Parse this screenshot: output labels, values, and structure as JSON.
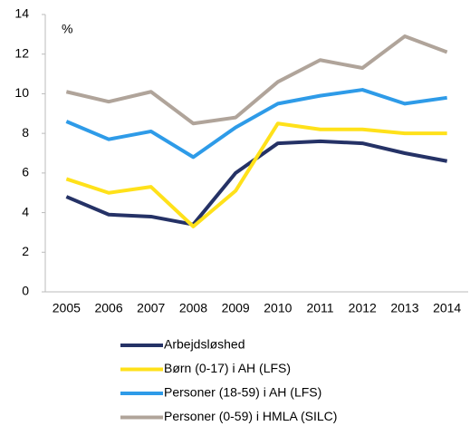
{
  "chart_data": {
    "type": "line",
    "y_label": "%",
    "categories": [
      "2005",
      "2006",
      "2007",
      "2008",
      "2009",
      "2010",
      "2011",
      "2012",
      "2013",
      "2014"
    ],
    "series": [
      {
        "name": "Arbejdsløshed",
        "color": "#253266",
        "values": [
          4.8,
          3.9,
          3.8,
          3.4,
          6.0,
          7.5,
          7.6,
          7.5,
          7.0,
          6.6
        ]
      },
      {
        "name": "Børn (0-17) i AH (LFS)",
        "color": "#ffe11a",
        "values": [
          5.7,
          5.0,
          5.3,
          3.3,
          5.1,
          8.5,
          8.2,
          8.2,
          8.0,
          8.0
        ]
      },
      {
        "name": "Personer (18-59) i AH (LFS)",
        "color": "#2e9be8",
        "values": [
          8.6,
          7.7,
          8.1,
          6.8,
          8.3,
          9.5,
          9.9,
          10.2,
          9.5,
          9.8
        ]
      },
      {
        "name": "Personer (0-59) i HMLA (SILC)",
        "color": "#b0a49a",
        "values": [
          10.1,
          9.6,
          10.1,
          8.5,
          8.8,
          10.6,
          11.7,
          11.3,
          12.9,
          12.1
        ]
      }
    ],
    "ylim": [
      0,
      14
    ],
    "yticks": [
      0,
      2,
      4,
      6,
      8,
      10,
      12,
      14
    ],
    "legend": "bottom"
  }
}
